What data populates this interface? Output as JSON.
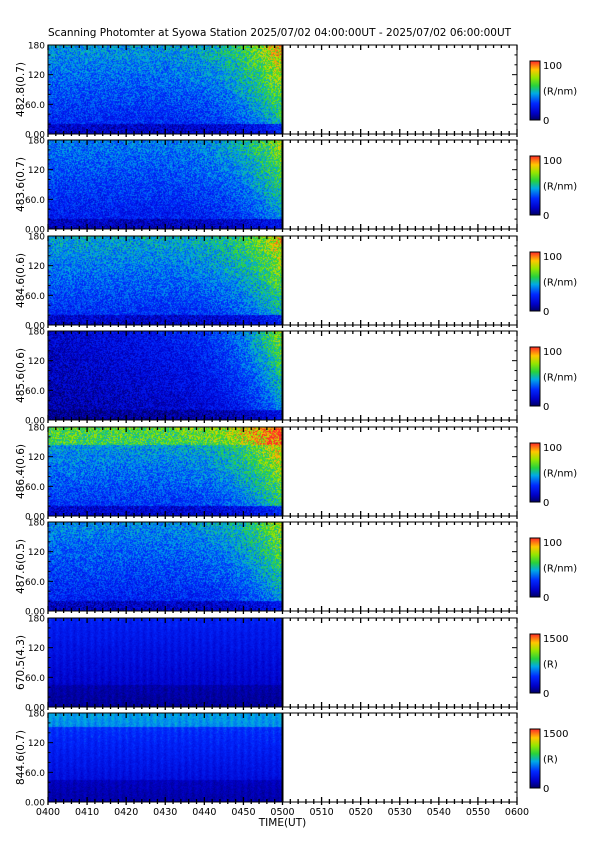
{
  "chart_data": {
    "type": "heatmap",
    "title": "Scanning Photomter at Syowa Station 2025/07/02 04:00:00UT - 2025/07/02 06:00:00UT",
    "xlabel": "TIME(UT)",
    "x_ticks": [
      "0400",
      "0410",
      "0420",
      "0430",
      "0440",
      "0450",
      "0500",
      "0510",
      "0520",
      "0530",
      "0540",
      "0550",
      "0600"
    ],
    "xlim": [
      "0400",
      "0600"
    ],
    "data_end": "0500",
    "y_ticks": [
      "0.00",
      "60.0",
      "120",
      "180"
    ],
    "ylim": [
      0,
      180
    ],
    "panels": [
      {
        "ylabel": "482.8(0.7)",
        "cbar_max": "100",
        "cbar_min": "0",
        "unit": "(R/nm)",
        "level": 0.38,
        "bright": 0.85,
        "mode": "nm"
      },
      {
        "ylabel": "483.6(0.7)",
        "cbar_max": "100",
        "cbar_min": "0",
        "unit": "(R/nm)",
        "level": 0.34,
        "bright": 0.7,
        "mode": "nm"
      },
      {
        "ylabel": "484.6(0.6)",
        "cbar_max": "100",
        "cbar_min": "0",
        "unit": "(R/nm)",
        "level": 0.4,
        "bright": 0.8,
        "mode": "nm"
      },
      {
        "ylabel": "485.6(0.6)",
        "cbar_max": "100",
        "cbar_min": "0",
        "unit": "(R/nm)",
        "level": 0.22,
        "bright": 0.55,
        "mode": "dark"
      },
      {
        "ylabel": "486.4(0.6)",
        "cbar_max": "100",
        "cbar_min": "0",
        "unit": "(R/nm)",
        "level": 0.42,
        "bright": 0.9,
        "mode": "hbeta"
      },
      {
        "ylabel": "487.6(0.5)",
        "cbar_max": "100",
        "cbar_min": "0",
        "unit": "(R/nm)",
        "level": 0.36,
        "bright": 0.7,
        "mode": "nm"
      },
      {
        "ylabel": "670.5(4.3)",
        "cbar_max": "1500",
        "cbar_min": "0",
        "unit": "(R)",
        "level": 0.17,
        "bright": 0.25,
        "mode": "smooth"
      },
      {
        "ylabel": "844.6(0.7)",
        "cbar_max": "1500",
        "cbar_min": "0",
        "unit": "(R)",
        "level": 0.22,
        "bright": 0.3,
        "mode": "smooth2"
      }
    ]
  }
}
